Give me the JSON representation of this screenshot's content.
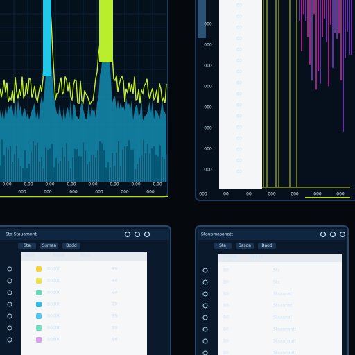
{
  "top_left": {
    "x_labels": [
      "0.00",
      "0.00",
      "0.00",
      "0.00",
      "0.00",
      "0.00",
      "0.00",
      "0.00"
    ],
    "x_labels_2": [
      "000",
      "000",
      "000",
      "000",
      "000",
      "000"
    ]
  },
  "top_right": {
    "left_labels": [
      "000",
      "000",
      "000",
      "000",
      "000",
      "000",
      "000",
      "000"
    ],
    "list_items": [
      "00",
      "00",
      "00",
      "00",
      "00",
      "00",
      "00",
      "00",
      "00",
      "00",
      "00",
      "00",
      "00",
      "00",
      "00",
      "00"
    ],
    "bottom_labels": [
      "000",
      "00",
      "00",
      "000",
      "000",
      "000",
      "000"
    ]
  },
  "bottom_left": {
    "title": "Sto Stauamnnt",
    "tabs": [
      "Sta",
      "Ssmaa",
      "Bodd"
    ],
    "columns": [
      "Bsta",
      "Ssaso",
      "Stoo"
    ],
    "rows": [
      [
        "B0d00",
        "E0"
      ],
      [
        "B0d00",
        "E0"
      ],
      [
        "B0d00",
        "E0"
      ],
      [
        "B0d00",
        "E0"
      ],
      [
        "B0d00",
        "E0"
      ],
      [
        "B0d00",
        "E0"
      ],
      [
        "B0d00",
        "E0"
      ]
    ]
  },
  "bottom_right": {
    "title": "Stauamasanatt",
    "tabs": [
      "Sta",
      "Sasoa",
      "Baod"
    ],
    "columns": [
      "Sataao",
      "Ssaaa"
    ],
    "rows": [
      [
        "B0",
        "Sta"
      ],
      [
        "B0",
        "Sta"
      ],
      [
        "B0",
        "Staaanat"
      ],
      [
        "B0",
        "Staaanat"
      ],
      [
        "B0",
        "Staaanat"
      ],
      [
        "B0",
        "Staaanaatt"
      ],
      [
        "B0",
        "Staaanaatt"
      ],
      [
        "B0",
        "Staaanaatt"
      ]
    ]
  }
}
